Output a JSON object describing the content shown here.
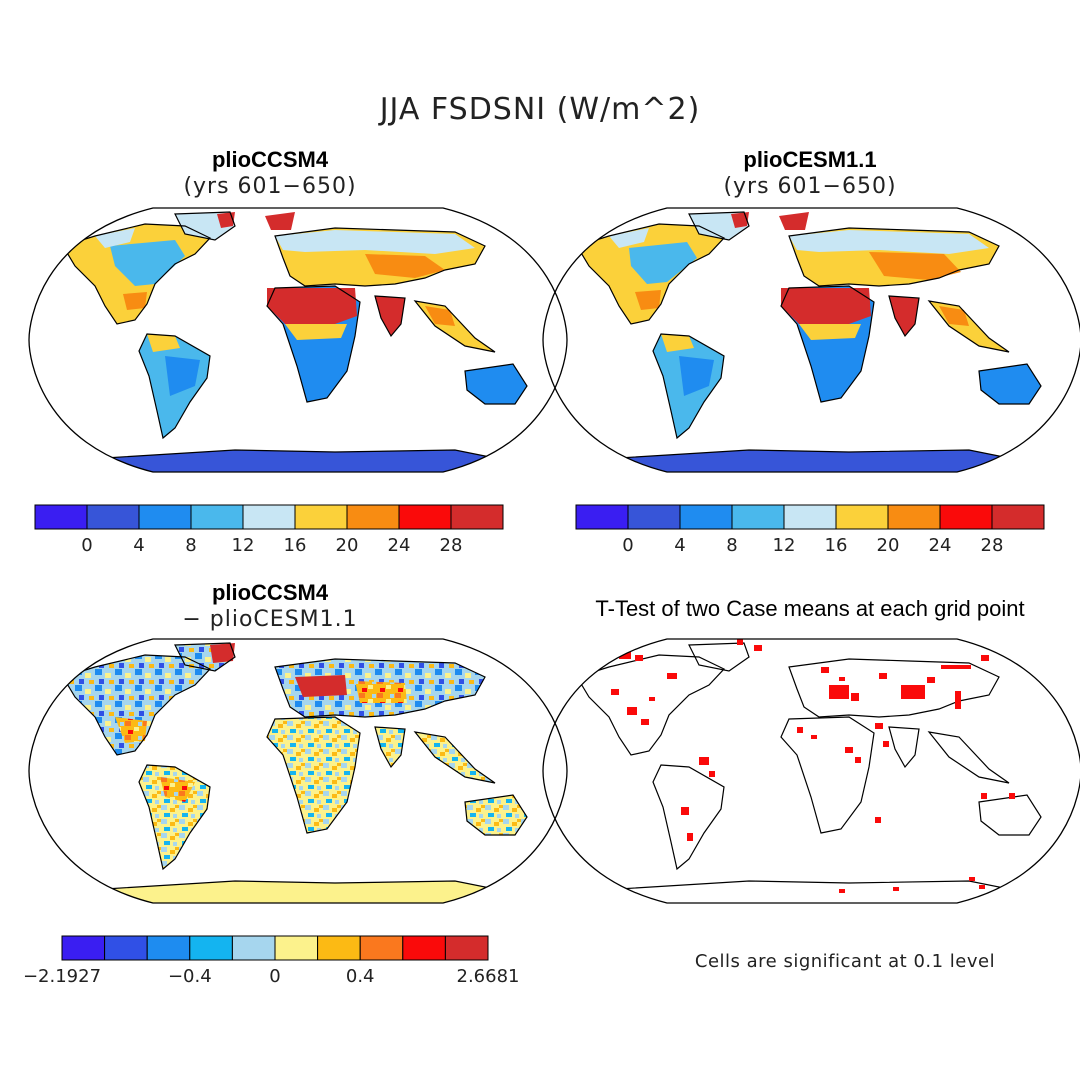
{
  "title": "JJA FSDSNI (W/m^2)",
  "colors": {
    "abs_scale": [
      "#3a1ef2",
      "#3755d8",
      "#1f8cf0",
      "#4ab8ec",
      "#c8e6f4",
      "#fbd13a",
      "#f88c12",
      "#fa0a0a",
      "#d42c2c"
    ],
    "diff_scale": [
      "#3a1ef2",
      "#3050e6",
      "#1e8cf0",
      "#14b4f0",
      "#a6d6ee",
      "#fcf28c",
      "#fcba14",
      "#fa781e",
      "#fa0a0a",
      "#d42c2c"
    ],
    "antarctica_abs": "#3755d8",
    "antarctica_diff": "#fcf28c",
    "significant_cell": "#fa0a0a",
    "outline": "#000000"
  },
  "panels": [
    {
      "title": "plioCCSM4",
      "subtitle": "(yrs 601−650)",
      "colorbar": {
        "labels": [
          "0",
          "4",
          "8",
          "12",
          "16",
          "20",
          "24",
          "28"
        ]
      }
    },
    {
      "title": "plioCESM1.1",
      "subtitle": "(yrs 601−650)",
      "colorbar": {
        "labels": [
          "0",
          "4",
          "8",
          "12",
          "16",
          "20",
          "24",
          "28"
        ]
      }
    },
    {
      "title": "plioCCSM4",
      "subtitle": "− plioCESM1.1",
      "colorbar": {
        "labels": [
          "−2.1927",
          "−0.4",
          "0",
          "0.4",
          "2.6681"
        ]
      }
    },
    {
      "title": "T-Test of two Case means at each grid point",
      "note": "Cells are significant at 0.1 level"
    }
  ]
}
